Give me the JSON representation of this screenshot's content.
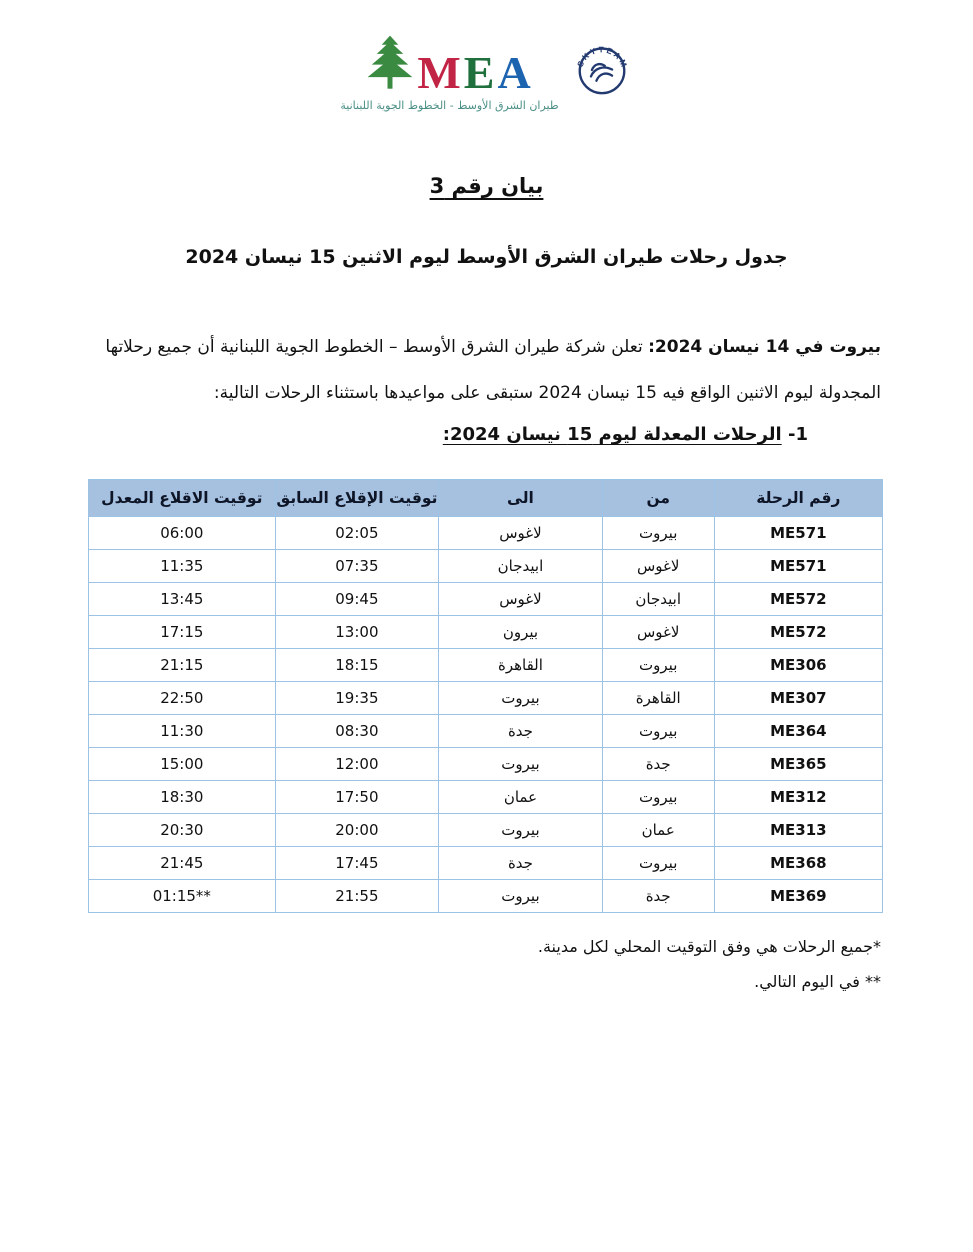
{
  "logo": {
    "mea_letters": [
      "M",
      "E",
      "A"
    ],
    "arabic_tagline": "طيران الشرق الأوسط - الخطوط الجوية اللبنانية",
    "skyteam_label": "SKYTEAM"
  },
  "colors": {
    "header_bg": "#a6c0e0",
    "table_border": "#9cc2e5",
    "mea_m": "#c22445",
    "mea_e": "#20703d",
    "mea_a": "#1d64b0",
    "cedar_green": "#3b8a41",
    "tagline_teal": "#4a8f85",
    "skyteam_navy": "#233a70"
  },
  "page": {
    "statement_title": "بيان رقم 3",
    "schedule_title": "جدول رحلات طيران الشرق الأوسط ليوم الاثنين 15 نيسان 2024",
    "intro_bold": "بيروت في 14 نيسان 2024:",
    "intro_rest": " تعلن شركة طيران الشرق الأوسط – الخطوط الجوية اللبنانية أن جميع رحلاتها",
    "intro_line2": "المجدولة ليوم الاثنين الواقع فيه 15 نيسان 2024  ستبقى على مواعيدها باستثناء الرحلات التالية:",
    "list_number": "1-",
    "list_heading": "الرحلات المعدلة ليوم 15 نيسان 2024:"
  },
  "table": {
    "headers": [
      "رقم الرحلة",
      "من",
      "الى",
      "توقيت الإقلاع السابق",
      "توقيت الاقلاع المعدل"
    ],
    "rows": [
      {
        "flight": "ME571",
        "from": "بيروت",
        "to": "لاغوس",
        "previous": "02:05",
        "revised": "06:00"
      },
      {
        "flight": "ME571",
        "from": "لاغوس",
        "to": "ابيدجان",
        "previous": "07:35",
        "revised": "11:35"
      },
      {
        "flight": "ME572",
        "from": "ابيدجان",
        "to": "لاغوس",
        "previous": "09:45",
        "revised": "13:45"
      },
      {
        "flight": "ME572",
        "from": "لاغوس",
        "to": "بيرون",
        "previous": "13:00",
        "revised": "17:15"
      },
      {
        "flight": "ME306",
        "from": "بيروت",
        "to": "القاهرة",
        "previous": "18:15",
        "revised": "21:15"
      },
      {
        "flight": "ME307",
        "from": "القاهرة",
        "to": "بيروت",
        "previous": "19:35",
        "revised": "22:50"
      },
      {
        "flight": "ME364",
        "from": "بيروت",
        "to": "جدة",
        "previous": "08:30",
        "revised": "11:30"
      },
      {
        "flight": "ME365",
        "from": "جدة",
        "to": "بيروت",
        "previous": "12:00",
        "revised": "15:00"
      },
      {
        "flight": "ME312",
        "from": "بيروت",
        "to": "عمان",
        "previous": "17:50",
        "revised": "18:30"
      },
      {
        "flight": "ME313",
        "from": "عمان",
        "to": "بيروت",
        "previous": "20:00",
        "revised": "20:30"
      },
      {
        "flight": "ME368",
        "from": "بيروت",
        "to": "جدة",
        "previous": "17:45",
        "revised": "21:45"
      },
      {
        "flight": "ME369",
        "from": "جدة",
        "to": "بيروت",
        "previous": "21:55",
        "revised": "01:15**"
      }
    ]
  },
  "notes": [
    "*جميع الرحلات هي وفق التوقيت المحلي لكل مدينة.",
    "** في اليوم التالي."
  ]
}
